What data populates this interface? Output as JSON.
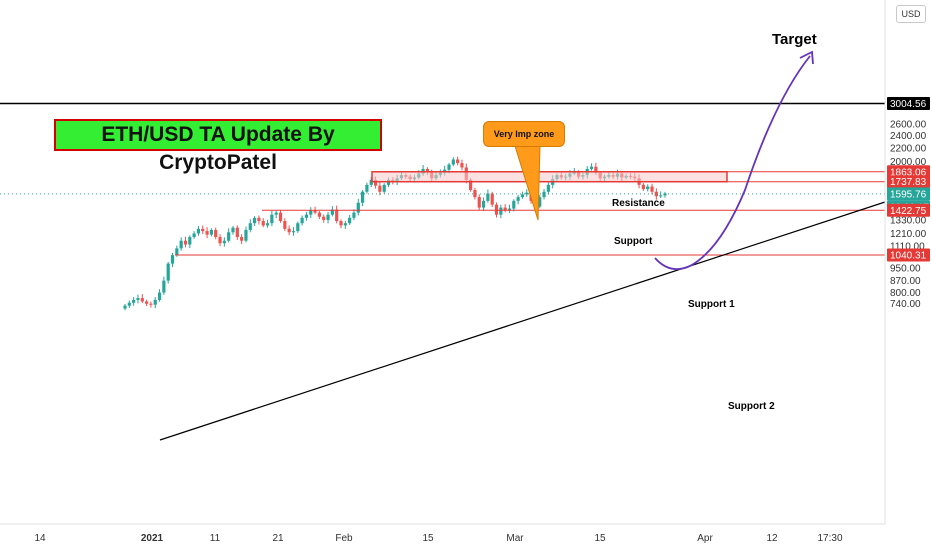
{
  "price_axis": {
    "currency": "USD",
    "labels": [
      "2600.00",
      "2400.00",
      "2200.00",
      "2000.00",
      "1800.00",
      "1450.00",
      "1330.00",
      "1210.00",
      "1110.00",
      "950.00",
      "870.00",
      "800.00",
      "740.00"
    ],
    "partial_top_label": "3"
  },
  "time_axis": {
    "labels": [
      "14",
      "2021",
      "11",
      "21",
      "Feb",
      "15",
      "Mar",
      "15",
      "Apr",
      "12",
      "17:30"
    ]
  },
  "price_tags": {
    "target": "3004.56",
    "resistance_top": "1863.06",
    "resistance_bottom": "1737.83",
    "current": "1595.76",
    "countdown": "09:20:17",
    "support1": "1422.75",
    "support2": "1040.31"
  },
  "annotations": {
    "title": "ETH/USD TA Update By CryptoPatel",
    "callout": "Very Imp zone",
    "target": "Target",
    "resistance": "Resistance",
    "support": "Support",
    "support1": "Support 1",
    "support2": "Support 2"
  },
  "colors": {
    "up_candle": "#26a69a",
    "down_candle": "#ef5350",
    "level_line": "#e53935",
    "zone_fill": "#f8c8c8",
    "trendline": "#000000",
    "projection": "#6633bb",
    "title_bg": "#33ee33",
    "callout_bg": "#ff9a1a",
    "current_tag": "#26a69a"
  },
  "chart_data": {
    "type": "candlestick",
    "symbol": "ETH/USD",
    "y_scale": "log",
    "price_levels": [
      {
        "label": "Target",
        "price": 3004.56
      },
      {
        "label": "Resistance",
        "price": 1863.06
      },
      {
        "label": "Support",
        "price": 1737.83
      },
      {
        "label": "Support 1",
        "price": 1422.75
      },
      {
        "label": "Support 2",
        "price": 1040.31
      }
    ],
    "current_price": 1595.76,
    "candles_close": [
      730,
      745,
      760,
      770,
      752,
      740,
      735,
      760,
      800,
      870,
      980,
      1040,
      1090,
      1150,
      1120,
      1180,
      1210,
      1250,
      1230,
      1200,
      1240,
      1180,
      1130,
      1150,
      1220,
      1260,
      1180,
      1150,
      1240,
      1300,
      1350,
      1320,
      1280,
      1300,
      1380,
      1400,
      1320,
      1250,
      1220,
      1230,
      1300,
      1350,
      1380,
      1420,
      1400,
      1360,
      1330,
      1380,
      1430,
      1320,
      1280,
      1300,
      1350,
      1400,
      1500,
      1620,
      1700,
      1760,
      1690,
      1620,
      1700,
      1760,
      1740,
      1780,
      1820,
      1800,
      1770,
      1790,
      1840,
      1900,
      1860,
      1780,
      1820,
      1850,
      1890,
      1960,
      2030,
      1980,
      1920,
      1760,
      1640,
      1560,
      1450,
      1520,
      1600,
      1480,
      1380,
      1450,
      1420,
      1440,
      1520,
      1560,
      1590,
      1610,
      1520,
      1460,
      1560,
      1620,
      1700,
      1770,
      1820,
      1790,
      1800,
      1840,
      1860,
      1800,
      1820,
      1900,
      1930,
      1850,
      1780,
      1800,
      1820,
      1800,
      1840,
      1790,
      1810,
      1800,
      1780,
      1700,
      1650,
      1680,
      1620,
      1570,
      1580,
      1600
    ]
  }
}
